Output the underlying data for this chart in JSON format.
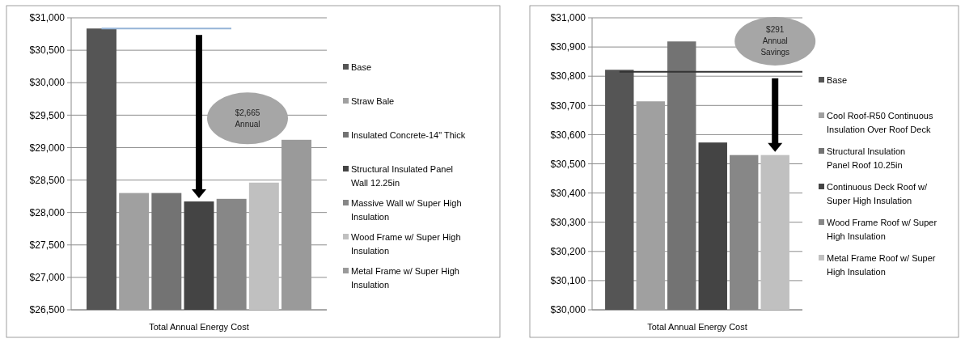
{
  "chart_data": [
    {
      "type": "bar",
      "categories": [
        "Total Annual Energy Cost"
      ],
      "ylim": [
        26500,
        31000
      ],
      "yticks": [
        {
          "value": 26500,
          "label": "$26,500"
        },
        {
          "value": 27000,
          "label": "$27,000"
        },
        {
          "value": 27500,
          "label": "$27,500"
        },
        {
          "value": 28000,
          "label": "$28,000"
        },
        {
          "value": 28500,
          "label": "$28,500"
        },
        {
          "value": 29000,
          "label": "$29,000"
        },
        {
          "value": 29500,
          "label": "$29,500"
        },
        {
          "value": 30000,
          "label": "$30,000"
        },
        {
          "value": 30500,
          "label": "$30,500"
        },
        {
          "value": 31000,
          "label": "$31,000"
        }
      ],
      "grid": "y",
      "legend": "right",
      "series": [
        {
          "name": "Base",
          "color": "#555555",
          "values": [
            30835
          ]
        },
        {
          "name": "Straw Bale",
          "color": "#a0a0a0",
          "values": [
            28300
          ]
        },
        {
          "name": "Insulated Concrete-14\" Thick",
          "color": "#737373",
          "values": [
            28300
          ]
        },
        {
          "name": "Structural Insulated Panel Wall 12.25in",
          "color": "#444444",
          "values": [
            28170
          ]
        },
        {
          "name": "Massive Wall w/ Super High Insulation",
          "color": "#878787",
          "values": [
            28210
          ]
        },
        {
          "name": "Wood Frame w/ Super High Insulation",
          "color": "#c0c0c0",
          "values": [
            28460
          ]
        },
        {
          "name": "Metal Frame w/ Super High Insulation",
          "color": "#9a9a9a",
          "values": [
            29120
          ]
        }
      ],
      "ref_lines": [
        {
          "axis": "y",
          "value": 30835,
          "label": null,
          "color": "#95b3d7"
        }
      ],
      "annotations": [
        "$2,665 Annual"
      ]
    },
    {
      "type": "bar",
      "categories": [
        "Total Annual Energy Cost"
      ],
      "ylim": [
        30000,
        31000
      ],
      "yticks": [
        {
          "value": 30000,
          "label": "$30,000"
        },
        {
          "value": 30100,
          "label": "$30,100"
        },
        {
          "value": 30200,
          "label": "$30,200"
        },
        {
          "value": 30300,
          "label": "$30,300"
        },
        {
          "value": 30400,
          "label": "$30,400"
        },
        {
          "value": 30500,
          "label": "$30,500"
        },
        {
          "value": 30600,
          "label": "$30,600"
        },
        {
          "value": 30700,
          "label": "$30,700"
        },
        {
          "value": 30800,
          "label": "$30,800"
        },
        {
          "value": 30900,
          "label": "$30,900"
        },
        {
          "value": 31000,
          "label": "$31,000"
        }
      ],
      "grid": "y",
      "legend": "right",
      "series": [
        {
          "name": "Base",
          "color": "#555555",
          "values": [
            30822
          ]
        },
        {
          "name": "Cool Roof-R50 Continuous Insulation Over Roof Deck",
          "color": "#a0a0a0",
          "values": [
            30714
          ]
        },
        {
          "name": "Structural Insulation Panel Roof 10.25in",
          "color": "#737373",
          "values": [
            30919
          ]
        },
        {
          "name": "Continuous Deck Roof w/ Super High Insulation",
          "color": "#444444",
          "values": [
            30573
          ]
        },
        {
          "name": "Wood Frame Roof w/ Super High Insulation",
          "color": "#878787",
          "values": [
            30530
          ]
        },
        {
          "name": "Metal Frame Roof w/ Super High Insulation",
          "color": "#c0c0c0",
          "values": [
            30530
          ]
        }
      ],
      "ref_lines": [
        {
          "axis": "y",
          "value": 30815,
          "label": null,
          "color": "#333333"
        }
      ],
      "annotations": [
        "$291 Annual Savings"
      ]
    }
  ]
}
